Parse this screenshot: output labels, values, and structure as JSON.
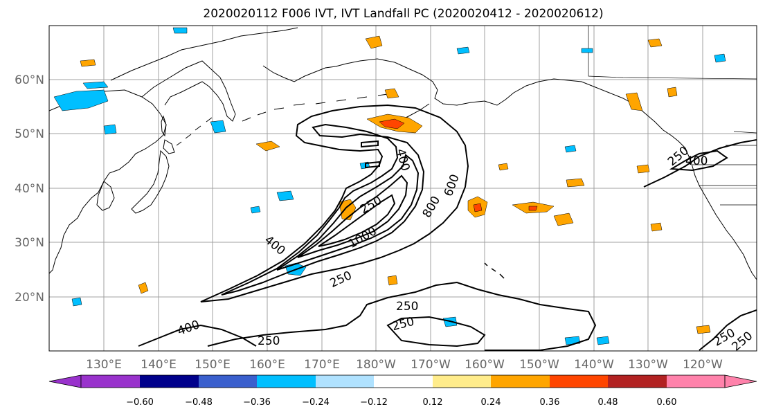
{
  "title": "2020020112 F006 IVT, IVT Landfall PC (2020020412 - 2020020612)",
  "lat_labels": [
    "60°N",
    "50°N",
    "40°N",
    "30°N",
    "20°N"
  ],
  "lon_labels": [
    "130°E",
    "140°E",
    "150°E",
    "160°E",
    "170°E",
    "180°W",
    "170°W",
    "160°W",
    "150°W",
    "140°W",
    "130°W",
    "120°W"
  ],
  "contour_labels": [
    "250",
    "400",
    "600",
    "800",
    "1000",
    "250",
    "250",
    "400",
    "250",
    "400",
    "250",
    "250",
    "250",
    "250",
    "400"
  ],
  "colorbar": {
    "ticks": [
      "−0.60",
      "−0.48",
      "−0.36",
      "−0.24",
      "−0.12",
      "0.12",
      "0.24",
      "0.36",
      "0.48",
      "0.60"
    ],
    "colors": [
      "#9932cc",
      "#00008b",
      "#3a5fcd",
      "#00bfff",
      "#b0e2ff",
      "#ffffff",
      "#ffec8b",
      "#ffa500",
      "#ff4500",
      "#b22222",
      "#ff82ab"
    ],
    "extend_low_color": "#9932cc",
    "extend_high_color": "#ff82ab"
  },
  "colors": {
    "land_outline": "#000000",
    "grid": "#a0a0a0",
    "ivt_contour": "#000000"
  }
}
